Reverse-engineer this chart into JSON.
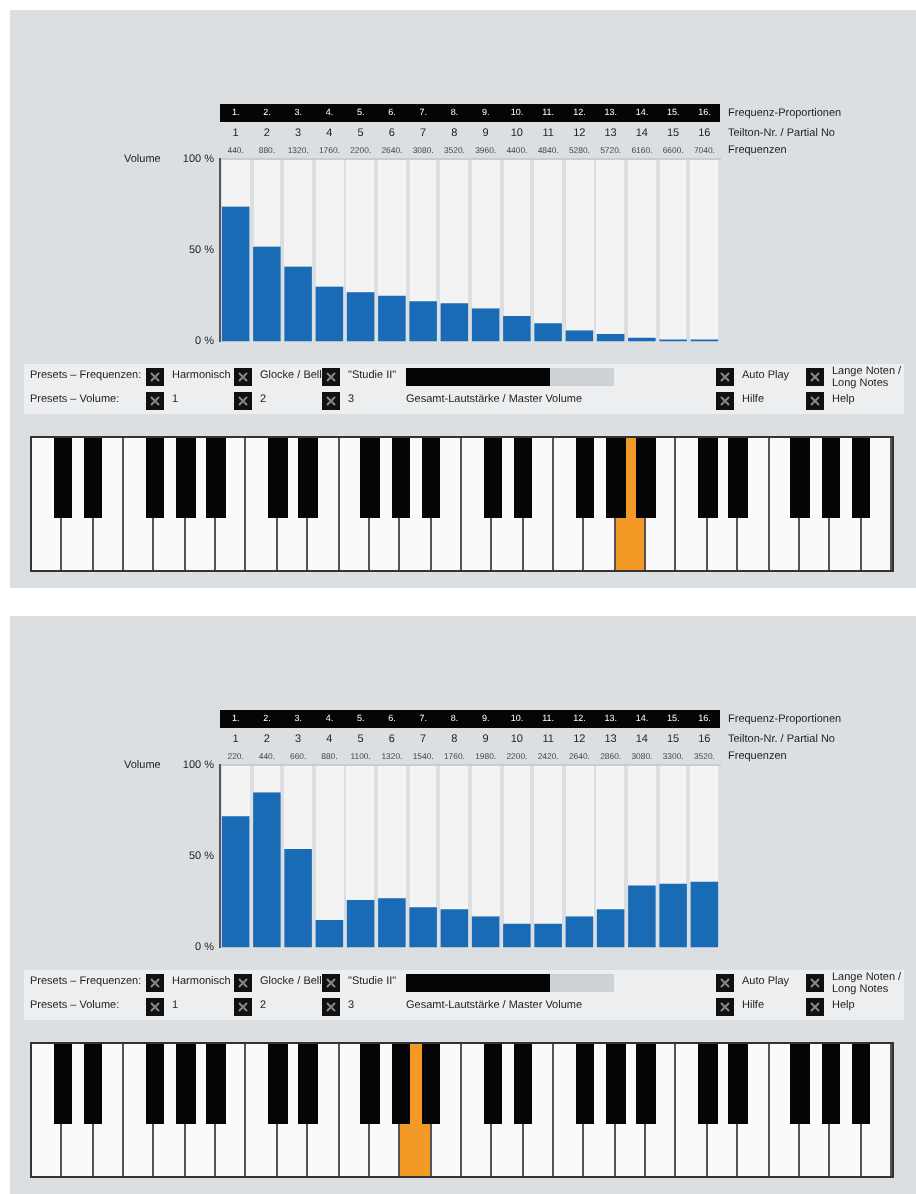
{
  "chart_data": [
    {
      "type": "bar",
      "x": [
        440,
        880,
        1320,
        1760,
        2200,
        2640,
        3080,
        3520,
        3960,
        4400,
        4840,
        5280,
        5720,
        6160,
        6600,
        7040
      ],
      "xlabel": "Frequenzen",
      "xlim": [
        220,
        7260
      ],
      "xticks": [
        {
          "value": 440,
          "label": "440."
        },
        {
          "value": 880,
          "label": "880."
        },
        {
          "value": 1320,
          "label": "1320."
        },
        {
          "value": 1760,
          "label": "1760."
        },
        {
          "value": 2200,
          "label": "2200."
        },
        {
          "value": 2640,
          "label": "2640."
        },
        {
          "value": 3080,
          "label": "3080."
        },
        {
          "value": 3520,
          "label": "3520."
        },
        {
          "value": 3960,
          "label": "3960."
        },
        {
          "value": 4400,
          "label": "4400."
        },
        {
          "value": 4840,
          "label": "4840."
        },
        {
          "value": 5280,
          "label": "5280."
        },
        {
          "value": 5720,
          "label": "5720."
        },
        {
          "value": 6160,
          "label": "6160."
        },
        {
          "value": 6600,
          "label": "6600."
        },
        {
          "value": 7040,
          "label": "7040."
        }
      ],
      "x2label": "Teilton-Nr. / Partial No",
      "x2lim": [
        0.5,
        16.5
      ],
      "x2ticks": [
        1,
        2,
        3,
        4,
        5,
        6,
        7,
        8,
        9,
        10,
        11,
        12,
        13,
        14,
        15,
        16
      ],
      "annotations": [
        "Frequenz-Proportionen",
        "1.",
        "2.",
        "3.",
        "4.",
        "5.",
        "6.",
        "7.",
        "8.",
        "9.",
        "10.",
        "11.",
        "12.",
        "13.",
        "14.",
        "15.",
        "16."
      ],
      "ylabel": "Volume",
      "ylim": [
        0,
        100
      ],
      "yticks": [
        {
          "value": 0,
          "label": "0 %"
        },
        {
          "value": 50,
          "label": "50 %"
        },
        {
          "value": 100,
          "label": "100 %"
        }
      ],
      "values": [
        74,
        52,
        41,
        30,
        27,
        25,
        22,
        21,
        18,
        14,
        10,
        6,
        4,
        2,
        1,
        1
      ],
      "color": "#1a6bb5"
    },
    {
      "type": "other",
      "annotations": [
        "Presets – Frequenzen:",
        "Harmonisch",
        "Glocke / Bell",
        "\"Studie II\"",
        "Auto Play",
        "Lange Noten / Long Notes",
        "Presets – Volume:",
        "1",
        "2",
        "3",
        "Gesamt-Lautstärke / Master Volume",
        "Hilfe",
        "Help"
      ]
    },
    {
      "type": "bar",
      "x": [
        220,
        440,
        660,
        880,
        1100,
        1320,
        1540,
        1760,
        1980,
        2200,
        2420,
        2640,
        2860,
        3080,
        3300,
        3520
      ],
      "xlabel": "Frequenzen",
      "xlim": [
        110,
        3630
      ],
      "xticks": [
        {
          "value": 220,
          "label": "220."
        },
        {
          "value": 440,
          "label": "440."
        },
        {
          "value": 660,
          "label": "660."
        },
        {
          "value": 880,
          "label": "880."
        },
        {
          "value": 1100,
          "label": "1100."
        },
        {
          "value": 1320,
          "label": "1320."
        },
        {
          "value": 1540,
          "label": "1540."
        },
        {
          "value": 1760,
          "label": "1760."
        },
        {
          "value": 1980,
          "label": "1980."
        },
        {
          "value": 2200,
          "label": "2200."
        },
        {
          "value": 2420,
          "label": "2420."
        },
        {
          "value": 2640,
          "label": "2640."
        },
        {
          "value": 2860,
          "label": "2860."
        },
        {
          "value": 3080,
          "label": "3080."
        },
        {
          "value": 3300,
          "label": "3300."
        },
        {
          "value": 3520,
          "label": "3520."
        }
      ],
      "x2label": "Teilton-Nr. / Partial No",
      "x2lim": [
        0.5,
        16.5
      ],
      "x2ticks": [
        1,
        2,
        3,
        4,
        5,
        6,
        7,
        8,
        9,
        10,
        11,
        12,
        13,
        14,
        15,
        16
      ],
      "annotations": [
        "Frequenz-Proportionen",
        "1.",
        "2.",
        "3.",
        "4.",
        "5.",
        "6.",
        "7.",
        "8.",
        "9.",
        "10.",
        "11.",
        "12.",
        "13.",
        "14.",
        "15.",
        "16."
      ],
      "ylabel": "Volume",
      "ylim": [
        0,
        100
      ],
      "yticks": [
        {
          "value": 0,
          "label": "0 %"
        },
        {
          "value": 50,
          "label": "50 %"
        },
        {
          "value": 100,
          "label": "100 %"
        }
      ],
      "values": [
        72,
        85,
        54,
        15,
        26,
        27,
        22,
        21,
        17,
        13,
        13,
        17,
        21,
        34,
        35,
        36
      ],
      "color": "#1a6bb5"
    },
    {
      "type": "other",
      "annotations": [
        "Presets – Frequenzen:",
        "Harmonisch",
        "Glocke / Bell",
        "\"Studie II\"",
        "Auto Play",
        "Lange Noten / Long Notes",
        "Presets – Volume:",
        "1",
        "2",
        "3",
        "Gesamt-Lautstärke / Master Volume",
        "Hilfe",
        "Help"
      ]
    }
  ]
}
